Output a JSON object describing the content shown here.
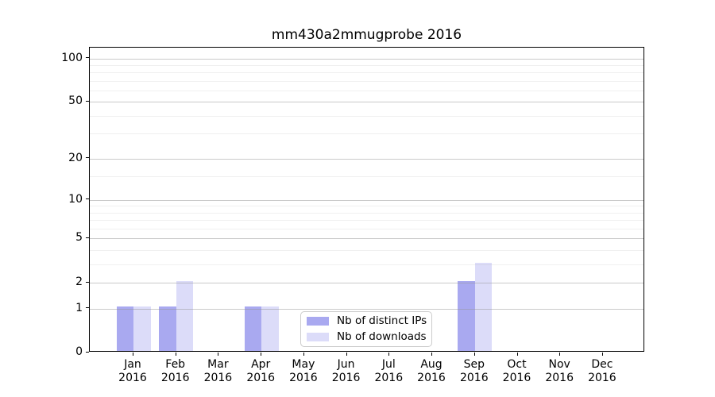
{
  "figure": {
    "background": "#ffffff"
  },
  "chart_data": {
    "type": "bar",
    "title": "mm430a2mmugprobe 2016",
    "categories": [
      "Jan",
      "Feb",
      "Mar",
      "Apr",
      "May",
      "Jun",
      "Jul",
      "Aug",
      "Sep",
      "Oct",
      "Nov",
      "Dec"
    ],
    "year_label": "2016",
    "series": [
      {
        "name": "Nb of distinct IPs",
        "color": "#a9a9f0",
        "values": [
          1,
          1,
          0,
          1,
          0,
          0,
          0,
          0,
          2,
          0,
          0,
          0
        ]
      },
      {
        "name": "Nb of downloads",
        "color": "#dcdcf9",
        "values": [
          1,
          2,
          0,
          1,
          0,
          0,
          0,
          0,
          3,
          0,
          0,
          0
        ]
      }
    ],
    "xlabel": "",
    "ylabel": "",
    "y_scale": "log1p",
    "y_ticks": [
      0,
      1,
      2,
      5,
      10,
      20,
      50,
      100
    ],
    "y_minor_ticks": [
      3,
      4,
      6,
      7,
      8,
      9,
      15,
      30,
      40,
      60,
      70,
      80,
      90
    ],
    "ylim": [
      0,
      118
    ],
    "grid": true,
    "legend_position": "lower center"
  }
}
